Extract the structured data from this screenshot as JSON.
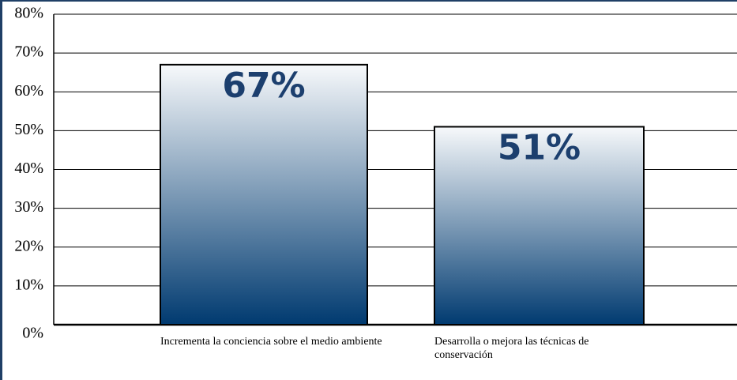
{
  "chart_data": {
    "type": "bar",
    "categories": [
      "Incrementa la conciencia sobre el medio ambiente",
      "Desarrolla o mejora las técnicas de conservación"
    ],
    "values": [
      67,
      51
    ],
    "value_labels": [
      "67%",
      "51%"
    ],
    "color": "#003a70",
    "ylim": [
      0,
      80
    ],
    "yticks": [
      {
        "value": 0,
        "label": "0%"
      },
      {
        "value": 10,
        "label": "10%"
      },
      {
        "value": 20,
        "label": "20%"
      },
      {
        "value": 30,
        "label": "30%"
      },
      {
        "value": 40,
        "label": "40%"
      },
      {
        "value": 50,
        "label": "50%"
      },
      {
        "value": 60,
        "label": "60%"
      },
      {
        "value": 70,
        "label": "70%"
      },
      {
        "value": 80,
        "label": "80%"
      }
    ],
    "grid": true
  }
}
